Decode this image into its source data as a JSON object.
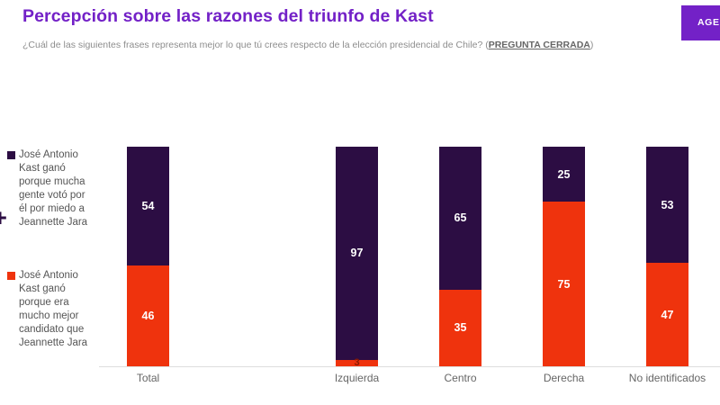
{
  "header": {
    "title": "Percepción sobre las razones del triunfo de Kast",
    "subtitle_prefix": "¿Cuál de las siguientes frases representa mejor lo que tú crees respecto de la elección presidencial de Chile? (",
    "subtitle_emphasis": "PREGUNTA CERRADA",
    "subtitle_suffix": ")",
    "action_button_label": "AGE"
  },
  "legend": {
    "plus_mark": "+",
    "items": [
      {
        "label": "José Antonio\nKast ganó\nporque mucha\ngente votó por\nél por miedo a\nJeannette Jara",
        "color": "#2c0d43"
      },
      {
        "label": "José Antonio\nKast ganó\nporque era\nmucho mejor\ncandidato que\nJeannette Jara",
        "color": "#ef330d"
      }
    ]
  },
  "chart_data": {
    "type": "bar",
    "stacked": true,
    "unit": "percent",
    "title": "Percepción sobre las razones del triunfo de Kast",
    "categories": [
      "Total",
      "Izquierda",
      "Centro",
      "Derecha",
      "No identificados"
    ],
    "series": [
      {
        "name": "José Antonio Kast ganó porque mucha gente votó por él por miedo a Jeannette Jara",
        "color": "#2c0d43",
        "values": [
          54,
          97,
          65,
          25,
          53
        ]
      },
      {
        "name": "José Antonio Kast ganó porque era mucho mejor candidato que Jeannette Jara",
        "color": "#ef330d",
        "values": [
          46,
          3,
          35,
          75,
          47
        ]
      }
    ],
    "ylim": [
      0,
      100
    ],
    "grid": false,
    "legend_position": "left",
    "value_label_color": "#ffffff",
    "small_value_label_color": "#8a1a02",
    "axis_line_color": "#dedede",
    "category_label_color": "#666666"
  },
  "colors": {
    "accent_purple": "#7321c7"
  }
}
